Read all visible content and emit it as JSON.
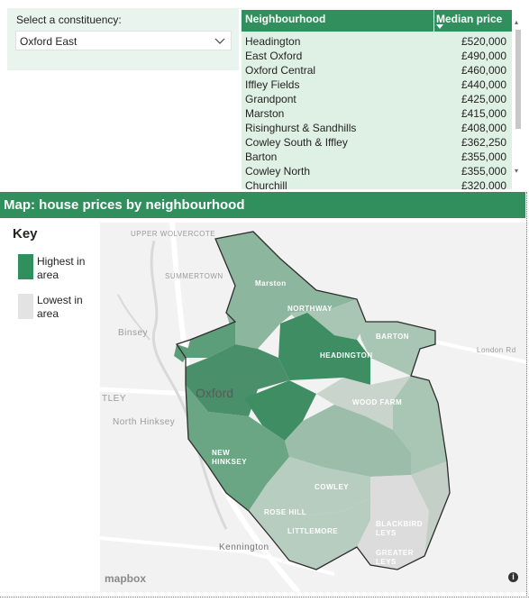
{
  "slicer": {
    "title": "Select a constituency:",
    "selected": "Oxford East"
  },
  "table": {
    "headers": {
      "name": "Neighbourhood",
      "price": "Median price"
    },
    "rows": [
      {
        "name": "Headington",
        "price": "£520,000"
      },
      {
        "name": "East Oxford",
        "price": "£490,000"
      },
      {
        "name": "Oxford Central",
        "price": "£460,000"
      },
      {
        "name": "Iffley Fields",
        "price": "£440,000"
      },
      {
        "name": "Grandpont",
        "price": "£425,000"
      },
      {
        "name": "Marston",
        "price": "£415,000"
      },
      {
        "name": "Risinghurst & Sandhills",
        "price": "£408,000"
      },
      {
        "name": "Cowley South & Iffley",
        "price": "£362,250"
      },
      {
        "name": "Barton",
        "price": "£355,000"
      },
      {
        "name": "Cowley North",
        "price": "£355,000"
      },
      {
        "name": "Churchill",
        "price": "£320,000"
      }
    ]
  },
  "map": {
    "title": "Map: house prices by neighbourhood",
    "key": {
      "title": "Key",
      "high": "Highest in area",
      "low": "Lowest in area",
      "high_color": "#318f5d",
      "low_color": "#e3e3e3"
    },
    "places": {
      "upper_wolvercote": "UPPER WOLVERCOTE",
      "summertown": "SUMMERTOWN",
      "binsey": "Binsey",
      "botley": "TLEY",
      "oxford": "Oxford",
      "north_hinksey": "North Hinksey",
      "kennington": "Kennington",
      "london_rd": "London Rd"
    },
    "neighbourhoods": {
      "marston": "Marston",
      "northway": "NORTHWAY",
      "barton": "BARTON",
      "headington": "HEADINGTON",
      "wood_farm": "WOOD FARM",
      "new_hinksey": "NEW HINKSEY",
      "cowley": "COWLEY",
      "rose_hill": "ROSE HILL",
      "littlemore": "LITTLEMORE",
      "blackbird_leys": "BLACKBIRD LEYS",
      "greater_leys": "GREATER LEYS"
    },
    "attribution": "mapbox",
    "info_icon": "info-icon"
  }
}
